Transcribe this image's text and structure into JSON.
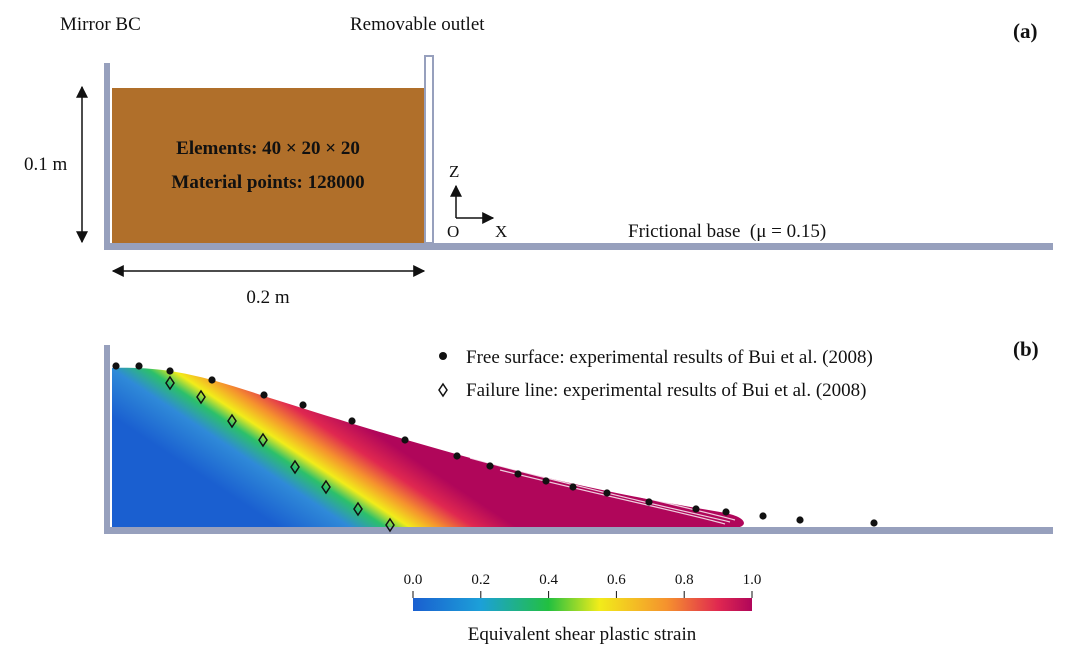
{
  "panel_a": {
    "label": "(a)",
    "left_label": "Mirror BC",
    "outlet_label": "Removable outlet",
    "height": "0.1 m",
    "width": "0.2 m",
    "elements": "Elements: 40 × 20 × 20",
    "points": "Material points: 128000",
    "axes": {
      "z": "Z",
      "x": "X",
      "origin": "O"
    },
    "base_label": "Frictional base  (μ = 0.15)"
  },
  "panel_b": {
    "label": "(b)",
    "legend": [
      "Free surface: experimental results of Bui et al. (2008)",
      "Failure line: experimental results of Bui et al. (2008)"
    ],
    "colorbar": {
      "ticks": [
        "0.0",
        "0.2",
        "0.4",
        "0.6",
        "0.8",
        "1.0"
      ],
      "title": "Equivalent shear plastic strain"
    }
  }
}
